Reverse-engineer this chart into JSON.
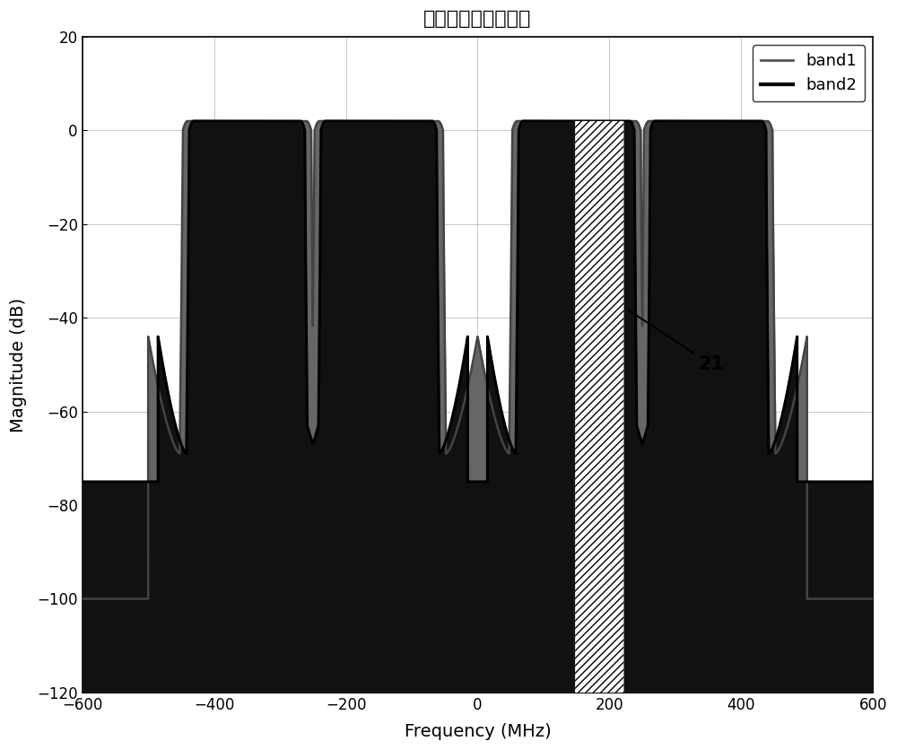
{
  "title": "子带频谱混叠示意图",
  "xlabel": "Frequency (MHz)",
  "ylabel": "Magnitude (dB)",
  "xlim": [
    -600,
    600
  ],
  "ylim": [
    -120,
    20
  ],
  "xticks": [
    -600,
    -400,
    -200,
    0,
    200,
    400,
    600
  ],
  "yticks": [
    -120,
    -100,
    -80,
    -60,
    -40,
    -20,
    0,
    20
  ],
  "band1_color": "#666666",
  "band2_color": "#111111",
  "background_color": "#ffffff",
  "annotation_text": "21",
  "band1_floor": -100,
  "band2_floor": -75,
  "peak": 2.0,
  "band1_bw": 200,
  "band2_bw": 180,
  "centers": [
    -350,
    -150,
    150,
    350
  ],
  "hatch_x1": 148,
  "hatch_x2": 222
}
